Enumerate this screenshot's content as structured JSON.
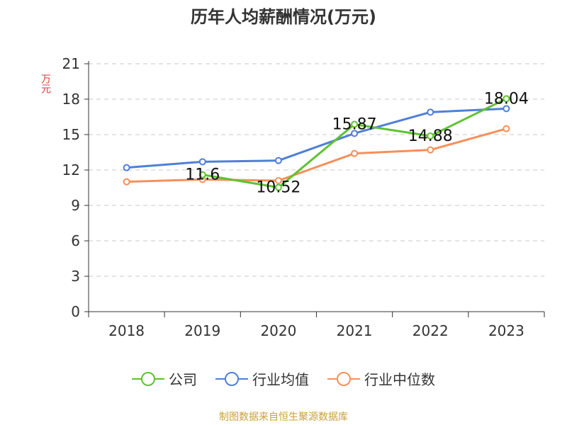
{
  "chart_data": {
    "type": "line",
    "title": "历年人均薪酬情况(万元)",
    "ylabel": "万元",
    "categories": [
      "2018",
      "2019",
      "2020",
      "2021",
      "2022",
      "2023"
    ],
    "ylim": [
      0,
      21
    ],
    "yticks": [
      0,
      3,
      6,
      9,
      12,
      15,
      18,
      21
    ],
    "grid": true,
    "legend_position": "bottom",
    "series": [
      {
        "name": "公司",
        "color": "#5ec230",
        "values": [
          null,
          11.6,
          10.52,
          15.87,
          14.88,
          18.04
        ],
        "labels": [
          "",
          "11.6",
          "10.52",
          "15.87",
          "14.88",
          "18.04"
        ]
      },
      {
        "name": "行业均值",
        "color": "#4f7fd8",
        "values": [
          12.2,
          12.7,
          12.8,
          15.1,
          16.9,
          17.2
        ]
      },
      {
        "name": "行业中位数",
        "color": "#f5905a",
        "values": [
          11.0,
          11.2,
          11.1,
          13.4,
          13.7,
          15.5
        ]
      }
    ]
  },
  "source_note": "制图数据来自恒生聚源数据库"
}
